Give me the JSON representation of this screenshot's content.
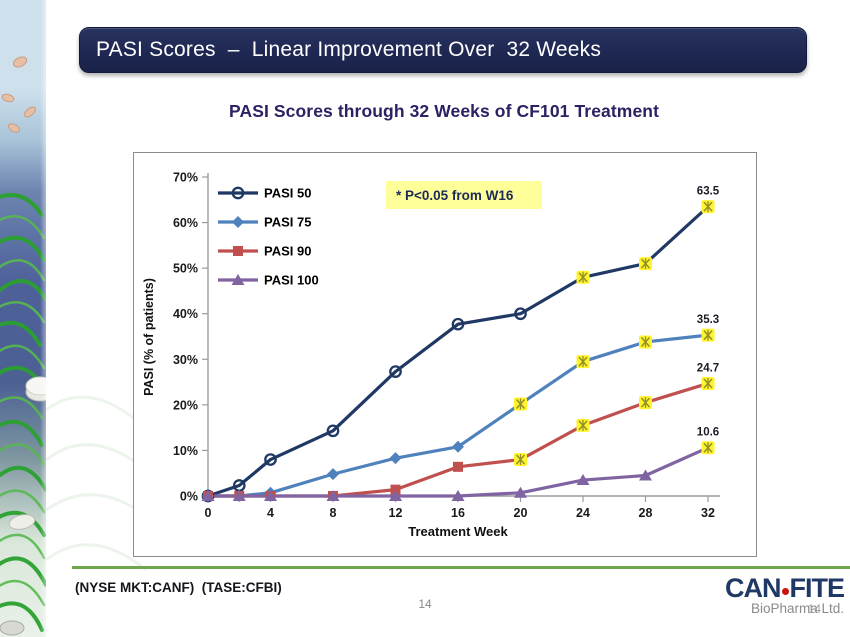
{
  "slide": {
    "title": "PASI Scores  –  Linear Improvement Over  32 Weeks",
    "subtitle": "PASI Scores through 32 Weeks of CF101 Treatment",
    "footer": {
      "ticker_text": "(NYSE MKT:CANF)  (TASE:CFBI)",
      "page_number": "14",
      "divider_color": "#6fa84c"
    },
    "logo": {
      "part1": "CAN",
      "part2": "FITE",
      "dot_color": "#cc1111",
      "subtext": "BioPharma Ltd.",
      "overlay_page_number": "14",
      "color": "#1f3864"
    }
  },
  "chart_data": {
    "type": "line",
    "title": "PASI Scores through 32 Weeks of CF101 Treatment",
    "xlabel": "Treatment Week",
    "ylabel": "PASI (% of patients)",
    "x": [
      0,
      2,
      4,
      8,
      12,
      16,
      20,
      24,
      28,
      32
    ],
    "x_ticks": [
      0,
      4,
      8,
      12,
      16,
      20,
      24,
      28,
      32
    ],
    "ylim": [
      0,
      70
    ],
    "y_tick_step": 10,
    "y_tick_suffix": "%",
    "grid": false,
    "legend_position": "top-left",
    "annotation": {
      "text": "* P<0.05 from W16",
      "bg_color": "#ffff99",
      "text_color": "#1b2a57"
    },
    "significance_marker": {
      "style": "yellow-asterisk",
      "fill": "#fff32b",
      "stroke": "#90902a",
      "meaning": "P<0.05 from W16"
    },
    "series": [
      {
        "name": "PASI 50",
        "color": "#1f3864",
        "marker": "circle-open",
        "sig_from_week": 24,
        "end_label": "63.5",
        "values": [
          0,
          2.3,
          8.0,
          14.3,
          27.3,
          37.7,
          40.0,
          48.0,
          51.0,
          63.5
        ]
      },
      {
        "name": "PASI 75",
        "color": "#4f81bd",
        "marker": "diamond",
        "sig_from_week": 20,
        "end_label": "35.3",
        "values": [
          0,
          0,
          0.7,
          4.8,
          8.3,
          10.8,
          20.2,
          29.5,
          33.8,
          35.3
        ]
      },
      {
        "name": "PASI 90",
        "color": "#c0504d",
        "marker": "square",
        "sig_from_week": 20,
        "end_label": "24.7",
        "values": [
          0,
          0,
          0,
          0,
          1.4,
          6.4,
          8.0,
          15.5,
          20.5,
          24.7
        ]
      },
      {
        "name": "PASI 100",
        "color": "#8064a2",
        "marker": "triangle",
        "sig_from_week": 32,
        "end_label": "10.6",
        "values": [
          0,
          0,
          0,
          0,
          0,
          0,
          0.7,
          3.5,
          4.5,
          10.6
        ]
      }
    ]
  }
}
